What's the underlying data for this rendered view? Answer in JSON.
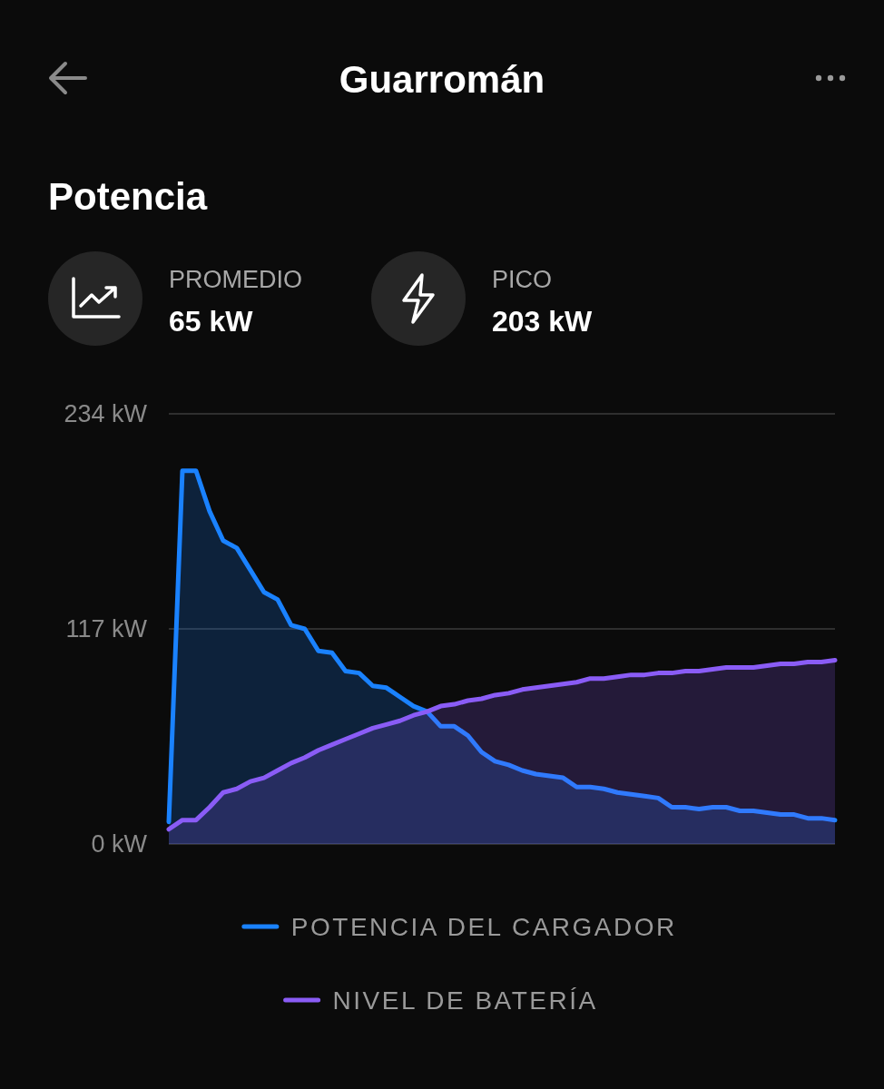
{
  "chart_data": {
    "type": "area",
    "title": "Guarromán",
    "subtitle": "Potencia",
    "annotations": [
      "PROMEDIO",
      "65 kW",
      "PICO",
      "203 kW"
    ],
    "categories": [
      null,
      null,
      null,
      null,
      null,
      null,
      null,
      null,
      null,
      null,
      null,
      null,
      null,
      null,
      null,
      null,
      null,
      null,
      null,
      null,
      null,
      null,
      null,
      null,
      null,
      null,
      null,
      null,
      null,
      null,
      null,
      null,
      null,
      null,
      null,
      null,
      null,
      null,
      null,
      null,
      null,
      null,
      null,
      null,
      null,
      null,
      null,
      null,
      null,
      null
    ],
    "series": [
      {
        "name": "POTENCIA DEL CARGADOR",
        "color": "#1a82ff",
        "values": [
          12,
          203,
          203,
          181,
          165,
          161,
          149,
          137,
          133,
          119,
          117,
          105,
          104,
          94,
          93,
          86,
          85,
          80,
          75,
          72,
          64,
          64,
          59,
          50,
          45,
          43,
          40,
          38,
          37,
          36,
          31,
          31,
          30,
          28,
          27,
          26,
          25,
          20,
          20,
          19,
          20,
          20,
          18,
          18,
          17,
          16,
          16,
          14,
          14,
          13
        ]
      },
      {
        "name": "NIVEL DE BATERÍA",
        "color": "#8a5cf6",
        "values": [
          8,
          13,
          13,
          20,
          28,
          30,
          34,
          36,
          40,
          44,
          47,
          51,
          54,
          57,
          60,
          63,
          65,
          67,
          70,
          72,
          75,
          76,
          78,
          79,
          81,
          82,
          84,
          85,
          86,
          87,
          88,
          90,
          90,
          91,
          92,
          92,
          93,
          93,
          94,
          94,
          95,
          96,
          96,
          96,
          97,
          98,
          98,
          99,
          99,
          100
        ]
      }
    ],
    "ylim": [
      0,
      234
    ],
    "yticks": [
      {
        "value": 0,
        "label": "0 kW"
      },
      {
        "value": 117,
        "label": "117 kW"
      },
      {
        "value": 234,
        "label": "234 kW"
      }
    ],
    "grid": "y",
    "legend": "bottom",
    "marker": "none",
    "line_style": "solid"
  }
}
